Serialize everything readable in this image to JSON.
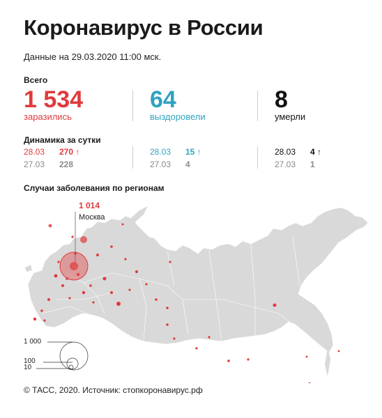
{
  "title": "Коронавирус в России",
  "date_line": "Данные на 29.03.2020 11:00 мск.",
  "total_label": "Всего",
  "stats": {
    "infected": {
      "value": "1 534",
      "label": "заразились",
      "color": "#e03a3c"
    },
    "recovered": {
      "value": "64",
      "label": "выздоровели",
      "color": "#2fa3bf"
    },
    "died": {
      "value": "8",
      "label": "умерли",
      "color": "#111111"
    }
  },
  "dynamics_label": "Динамика за сутки",
  "dynamics": {
    "infected": {
      "today_date": "28.03",
      "today_value": "270",
      "prev_date": "27.03",
      "prev_value": "228"
    },
    "recovered": {
      "today_date": "28.03",
      "today_value": "15",
      "prev_date": "27.03",
      "prev_value": "4"
    },
    "died": {
      "today_date": "28.03",
      "today_value": "4",
      "prev_date": "27.03",
      "prev_value": "1"
    }
  },
  "regions_title": "Случаи заболевания по регионам",
  "moscow": {
    "value": "1 014",
    "label": "Москва"
  },
  "legend": {
    "items": [
      "1 000",
      "100",
      "10"
    ]
  },
  "footer": "© ТАСС, 2020. Источник: стопкоронавирус.рф",
  "colors": {
    "accent": "#e03a3c",
    "blue": "#2fa3bf",
    "map": "#d9d9d9"
  }
}
